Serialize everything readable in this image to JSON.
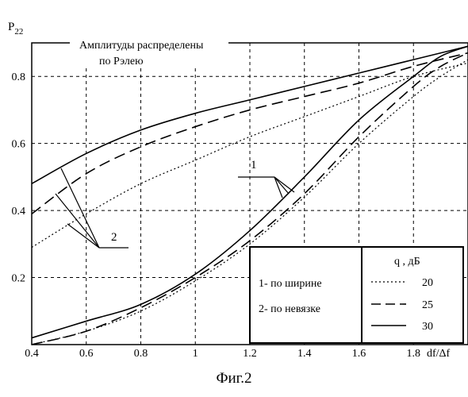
{
  "caption": "Фиг.2",
  "chart_data": {
    "type": "line",
    "ylabel": "P",
    "ylabel_sub": "22",
    "xlabel": "df/Δf",
    "xlim": [
      0.4,
      2.0
    ],
    "ylim": [
      0.0,
      0.9
    ],
    "xticks": [
      "0.4",
      "0.6",
      "0.8",
      "1",
      "1.2",
      "1.4",
      "1.6",
      "1.8"
    ],
    "yticks": [
      "0.2",
      "0.4",
      "0.6",
      "0.8"
    ],
    "grid": true,
    "title_lines": [
      "Амплитуды распределены",
      "по Рэлею"
    ],
    "annotations": {
      "group1": "1",
      "group2": "2"
    },
    "legend_methods": [
      "1- по ширине",
      "2- по невязке"
    ],
    "legend_q_title": "q , дБ",
    "series": [
      {
        "name": "20",
        "group": "1",
        "style": "dotted",
        "x": [
          0.4,
          0.6,
          0.8,
          1.0,
          1.2,
          1.4,
          1.6,
          1.8,
          1.9,
          2.0
        ],
        "y": [
          0.0,
          0.04,
          0.1,
          0.19,
          0.3,
          0.44,
          0.6,
          0.74,
          0.8,
          0.85
        ]
      },
      {
        "name": "25",
        "group": "1",
        "style": "dashed",
        "x": [
          0.4,
          0.6,
          0.8,
          1.0,
          1.2,
          1.4,
          1.6,
          1.8,
          1.9,
          2.0
        ],
        "y": [
          0.0,
          0.04,
          0.11,
          0.2,
          0.31,
          0.45,
          0.62,
          0.77,
          0.83,
          0.87
        ]
      },
      {
        "name": "30",
        "group": "1",
        "style": "solid",
        "x": [
          0.4,
          0.6,
          0.8,
          1.0,
          1.2,
          1.4,
          1.6,
          1.8,
          1.9,
          2.0
        ],
        "y": [
          0.02,
          0.07,
          0.12,
          0.21,
          0.34,
          0.5,
          0.67,
          0.8,
          0.86,
          0.89
        ]
      },
      {
        "name": "20",
        "group": "2",
        "style": "dotted",
        "x": [
          0.4,
          0.6,
          0.8,
          1.0,
          1.2,
          1.4,
          1.6,
          1.8,
          2.0
        ],
        "y": [
          0.29,
          0.39,
          0.48,
          0.55,
          0.62,
          0.68,
          0.74,
          0.8,
          0.84
        ]
      },
      {
        "name": "25",
        "group": "2",
        "style": "dashed",
        "x": [
          0.4,
          0.6,
          0.8,
          1.0,
          1.2,
          1.4,
          1.6,
          1.8,
          2.0
        ],
        "y": [
          0.39,
          0.51,
          0.59,
          0.65,
          0.7,
          0.74,
          0.78,
          0.83,
          0.87
        ]
      },
      {
        "name": "30",
        "group": "2",
        "style": "solid",
        "x": [
          0.4,
          0.6,
          0.8,
          1.0,
          1.2,
          1.4,
          1.6,
          1.8,
          2.0
        ],
        "y": [
          0.48,
          0.57,
          0.64,
          0.69,
          0.73,
          0.77,
          0.81,
          0.85,
          0.89
        ]
      }
    ]
  }
}
